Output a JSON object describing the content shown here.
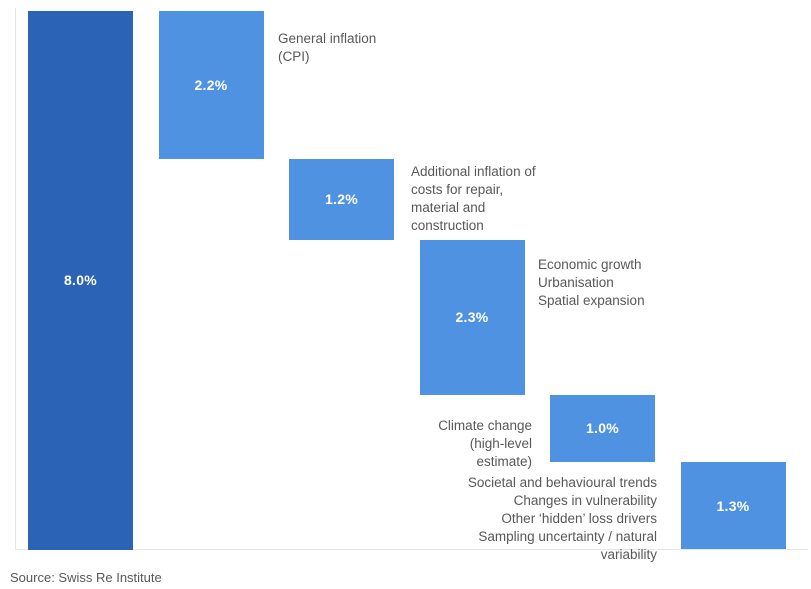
{
  "chart_data": {
    "type": "bar",
    "subtype": "waterfall",
    "title": "",
    "unit": "%",
    "total_value": 8.0,
    "legend": false,
    "grid": false,
    "categories": [
      "Total",
      "General inflation (CPI)",
      "Additional inflation of costs for repair, material and construction",
      "Economic growth / Urbanisation / Spatial expansion",
      "Climate change (high-level estimate)",
      "Societal and behavioural trends / Changes in vulnerability / Other ‘hidden’ loss drivers / Sampling uncertainty / natural variability"
    ],
    "values": [
      8.0,
      2.2,
      1.2,
      2.3,
      1.0,
      1.3
    ],
    "steps": [
      {
        "label": "8.0%",
        "value": 8.0,
        "role": "total",
        "annotation_lines": []
      },
      {
        "label": "2.2%",
        "value": 2.2,
        "role": "component",
        "annotation_lines": [
          "General inflation",
          "(CPI)"
        ]
      },
      {
        "label": "1.2%",
        "value": 1.2,
        "role": "component",
        "annotation_lines": [
          "Additional inflation of",
          "costs for repair,",
          "material and",
          "construction"
        ]
      },
      {
        "label": "2.3%",
        "value": 2.3,
        "role": "component",
        "annotation_lines": [
          "Economic growth",
          "Urbanisation",
          "Spatial expansion"
        ]
      },
      {
        "label": "1.0%",
        "value": 1.0,
        "role": "component",
        "annotation_lines": [
          "Climate change",
          "(high-level",
          "estimate)"
        ]
      },
      {
        "label": "1.3%",
        "value": 1.3,
        "role": "component",
        "annotation_lines": [
          "Societal and behavioural trends",
          "Changes in vulnerability",
          "Other ‘hidden’ loss drivers",
          "Sampling uncertainty / natural",
          "variability"
        ]
      }
    ],
    "colors": {
      "total": "#2b64b6",
      "component": "#5092e2",
      "axis_line": "#e5e5e5",
      "annotation_text": "#58585a",
      "bar_label_text": "#ffffff"
    }
  },
  "source": {
    "text": "Source: Swiss Re Institute"
  }
}
